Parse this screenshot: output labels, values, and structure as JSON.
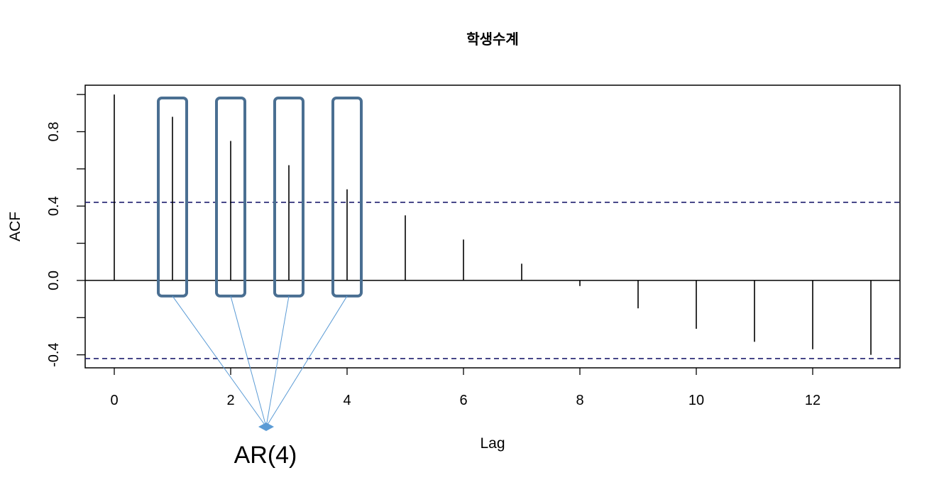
{
  "chart_data": {
    "type": "bar",
    "title": "학생수계",
    "xlabel": "Lag",
    "ylabel": "ACF",
    "x": [
      0,
      1,
      2,
      3,
      4,
      5,
      6,
      7,
      8,
      9,
      10,
      11,
      12,
      13
    ],
    "values": [
      1.0,
      0.88,
      0.75,
      0.62,
      0.49,
      0.35,
      0.22,
      0.09,
      -0.03,
      -0.15,
      -0.26,
      -0.33,
      -0.37,
      -0.4
    ],
    "xticks": [
      0,
      2,
      4,
      6,
      8,
      10,
      12
    ],
    "xtick_labels": [
      "0",
      "2",
      "4",
      "6",
      "8",
      "10",
      "12"
    ],
    "yticks": [
      -0.4,
      0.0,
      0.4,
      0.8
    ],
    "ytick_labels": [
      "-0.4",
      "0.0",
      "0.4",
      "0.8"
    ],
    "xlim": [
      -0.5,
      13.5
    ],
    "ylim": [
      -0.47,
      1.05
    ],
    "confidence_band": 0.42,
    "grid": false,
    "colors": {
      "bars": "#000000",
      "confidence_line": "#1f1f6e",
      "highlight_box": "#4a6f92",
      "annotation_line": "#5b9bd5"
    },
    "annotation": {
      "text": "AR(4)",
      "highlighted_lags": [
        1,
        2,
        3,
        4
      ]
    }
  }
}
